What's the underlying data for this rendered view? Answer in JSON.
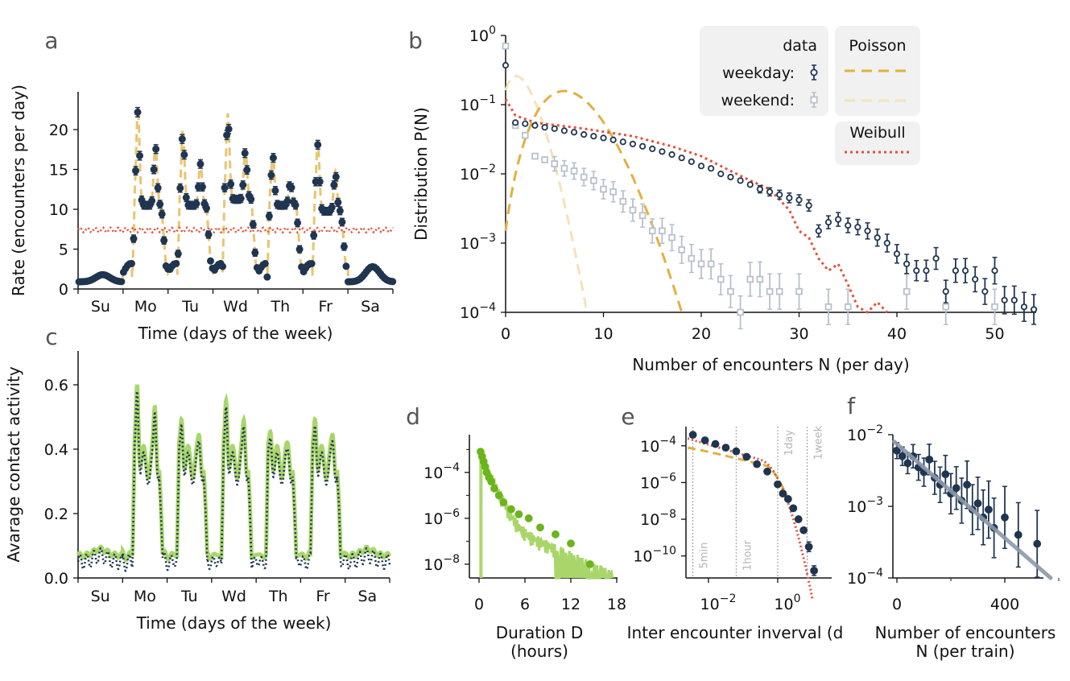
{
  "colors": {
    "data": "#1f3550",
    "weekend": "#b8c0cc",
    "poisson": "#e3b03f",
    "poisson_weekend": "#f5e2b8",
    "weibull": "#e2533e",
    "sim_green": "#a9d66b",
    "sim_green_dark": "#6bb51c",
    "fit_grey": "#8c99aa"
  },
  "chart_data": [
    {
      "panel": "a",
      "type": "scatter",
      "xlabel": "Time (days of the week)",
      "ylabel": "Rate (encounters per day)",
      "ylim": [
        0,
        25
      ],
      "yticks": [
        "0",
        "5",
        "10",
        "15",
        "20"
      ],
      "xticklabels": [
        "Su",
        "Mo",
        "Tu",
        "Wd",
        "Th",
        "Fr",
        "Sa"
      ],
      "series": [
        {
          "kind": "data with error bars",
          "values_note": "hourly rate, 1-2 on weekend/night, peaks during weekdays",
          "day_peaks": [
            1.8,
            22.3,
            19.6,
            21.6,
            16.7,
            18.1,
            2.8
          ],
          "daytime_plateau": [
            1.6,
            14,
            14,
            15,
            14,
            13,
            2.5
          ]
        },
        {
          "kind": "Poisson model (dashed)"
        },
        {
          "kind": "Weibull model (dotted)",
          "level": 7.4
        }
      ]
    },
    {
      "panel": "b",
      "type": "scatter",
      "xlabel": "Number of encounters N (per day)",
      "ylabel": "Distribution P(N)",
      "yscale": "log",
      "xlim": [
        0,
        54
      ],
      "ylim": [
        0.0001,
        1
      ],
      "xticks": [
        "0",
        "10",
        "20",
        "30",
        "40",
        "50"
      ],
      "yticks": [
        "10^0",
        "10^-1",
        "10^-2",
        "10^-3",
        "10^-4"
      ],
      "legend": {
        "data_title": "data",
        "weekday": "weekday:",
        "weekend": "weekend:",
        "poisson_title": "Poisson",
        "weibull_title": "Weibull"
      },
      "weekday": {
        "x": [
          0,
          1,
          2,
          3,
          4,
          5,
          6,
          7,
          8,
          9,
          10,
          11,
          12,
          13,
          14,
          15,
          16,
          17,
          18,
          19,
          20,
          21,
          22,
          23,
          24,
          25,
          26,
          27,
          28,
          29,
          30,
          31,
          32,
          33,
          34,
          35,
          36,
          37,
          38,
          39,
          40,
          41,
          42,
          43,
          44,
          45,
          46,
          47,
          48,
          49,
          50,
          51,
          52,
          53,
          54
        ],
        "y": [
          0.37,
          0.055,
          0.053,
          0.05,
          0.047,
          0.045,
          0.042,
          0.04,
          0.037,
          0.035,
          0.033,
          0.031,
          0.029,
          0.027,
          0.025,
          0.023,
          0.021,
          0.019,
          0.017,
          0.015,
          0.013,
          0.012,
          0.01,
          0.009,
          0.008,
          0.007,
          0.006,
          0.0055,
          0.005,
          0.0045,
          0.0042,
          0.0035,
          0.0015,
          0.002,
          0.0022,
          0.0018,
          0.0017,
          0.0015,
          0.0012,
          0.001,
          0.0007,
          0.0005,
          0.0004,
          0.0004,
          0.0006,
          0.0002,
          0.0004,
          0.0004,
          0.0003,
          0.0002,
          0.0004,
          0.00015,
          0.00015,
          0.00012,
          0.00011
        ]
      },
      "weekend": {
        "x": [
          0,
          1,
          2,
          3,
          4,
          5,
          6,
          7,
          8,
          9,
          10,
          11,
          12,
          13,
          14,
          15,
          16,
          17,
          18,
          19,
          20,
          21,
          22,
          23,
          24,
          25,
          26,
          27,
          28,
          30,
          33,
          35,
          41,
          45,
          50
        ],
        "y": [
          0.7,
          0.05,
          0.036,
          0.018,
          0.016,
          0.014,
          0.012,
          0.011,
          0.009,
          0.008,
          0.006,
          0.0055,
          0.004,
          0.003,
          0.0025,
          0.0015,
          0.0015,
          0.0012,
          0.0008,
          0.0006,
          0.0005,
          0.0005,
          0.0003,
          0.0002,
          0.0001,
          0.0003,
          0.0003,
          0.0002,
          0.0002,
          0.0002,
          0.00012,
          0.00012,
          0.0002,
          0.00012,
          0.00012
        ]
      },
      "poisson_weekday_lambda": 6.5,
      "poisson_weekend_lambda": 1.6,
      "weibull_note": "decays from 0.12 at N=0 to 1e-4 near N=39"
    },
    {
      "panel": "c",
      "type": "line",
      "xlabel": "Time (days of the week)",
      "ylabel": "Avarage contact activity",
      "ylim": [
        0,
        0.7
      ],
      "yticks": [
        "0.0",
        "0.2",
        "0.4",
        "0.6"
      ],
      "xticklabels": [
        "Su",
        "Mo",
        "Tu",
        "Wd",
        "Th",
        "Fr",
        "Sa"
      ],
      "day_peaks": [
        0.08,
        0.66,
        0.55,
        0.61,
        0.51,
        0.55,
        0.08
      ],
      "baseline": 0.06
    },
    {
      "panel": "d",
      "type": "line",
      "xlabel": "Duration D",
      "xlabel_2": "(hours)",
      "yscale": "log",
      "xticks": [
        "0",
        "6",
        "12",
        "18"
      ],
      "yticks": [
        "10^-4",
        "10^-6",
        "10^-8"
      ],
      "points_x": [
        0.2,
        0.4,
        0.6,
        0.8,
        1.0,
        1.3,
        1.6,
        2.0,
        2.6,
        3.2,
        4.2,
        5.2,
        6.5,
        8.0,
        10.0,
        12.0,
        14.5
      ],
      "points_y": [
        0.0008,
        0.0005,
        0.0003,
        0.00018,
        0.0001,
        6e-05,
        4e-05,
        2e-05,
        1e-05,
        5e-06,
        2.5e-06,
        1.5e-06,
        1e-06,
        4e-07,
        2e-07,
        8e-08,
        1e-08
      ]
    },
    {
      "panel": "e",
      "type": "scatter",
      "xlabel": "Inter encounter inverval (d",
      "yscale": "log",
      "xscale": "log",
      "xticks": [
        "10^-2",
        "10^0"
      ],
      "yticks": [
        "10^-4",
        "10^-6",
        "10^-8",
        "10^-10"
      ],
      "vline_labels": [
        "5min",
        "1hour",
        "1day",
        "1week"
      ],
      "points_logx": [
        -2.45,
        -2.1,
        -1.8,
        -1.5,
        -1.2,
        -0.9,
        -0.6,
        -0.3,
        0.0,
        0.15,
        0.3,
        0.45,
        0.6,
        0.75,
        0.9,
        1.05
      ],
      "points_logy": [
        -3.4,
        -3.7,
        -3.9,
        -4.1,
        -4.3,
        -4.6,
        -5.0,
        -5.4,
        -6.1,
        -6.6,
        -6.9,
        -7.4,
        -8.0,
        -8.6,
        -9.5,
        -10.8
      ]
    },
    {
      "panel": "f",
      "type": "scatter",
      "xlabel": "Number of encounters",
      "xlabel_2": "N (per train)",
      "yscale": "log",
      "xlim": [
        -50,
        620
      ],
      "ylim": [
        0.0001,
        0.01
      ],
      "xticks": [
        "0",
        "400"
      ],
      "yticks": [
        "10^-2",
        "10^-3",
        "10^-4"
      ],
      "x": [
        0,
        20,
        40,
        60,
        80,
        100,
        120,
        140,
        160,
        180,
        200,
        220,
        240,
        260,
        280,
        300,
        320,
        340,
        360,
        400,
        450,
        520
      ],
      "y": [
        0.006,
        0.005,
        0.004,
        0.005,
        0.0035,
        0.003,
        0.0045,
        0.0025,
        0.002,
        0.0028,
        0.0015,
        0.0018,
        0.0012,
        0.002,
        0.0009,
        0.0011,
        0.0007,
        0.0009,
        0.0005,
        0.0007,
        0.0004,
        0.0003
      ],
      "fit_note": "exponential fit from 0.008 at N=-10 to 1e-4 at N=570"
    }
  ],
  "panel_letters": [
    "a",
    "b",
    "c",
    "d",
    "e",
    "f"
  ]
}
